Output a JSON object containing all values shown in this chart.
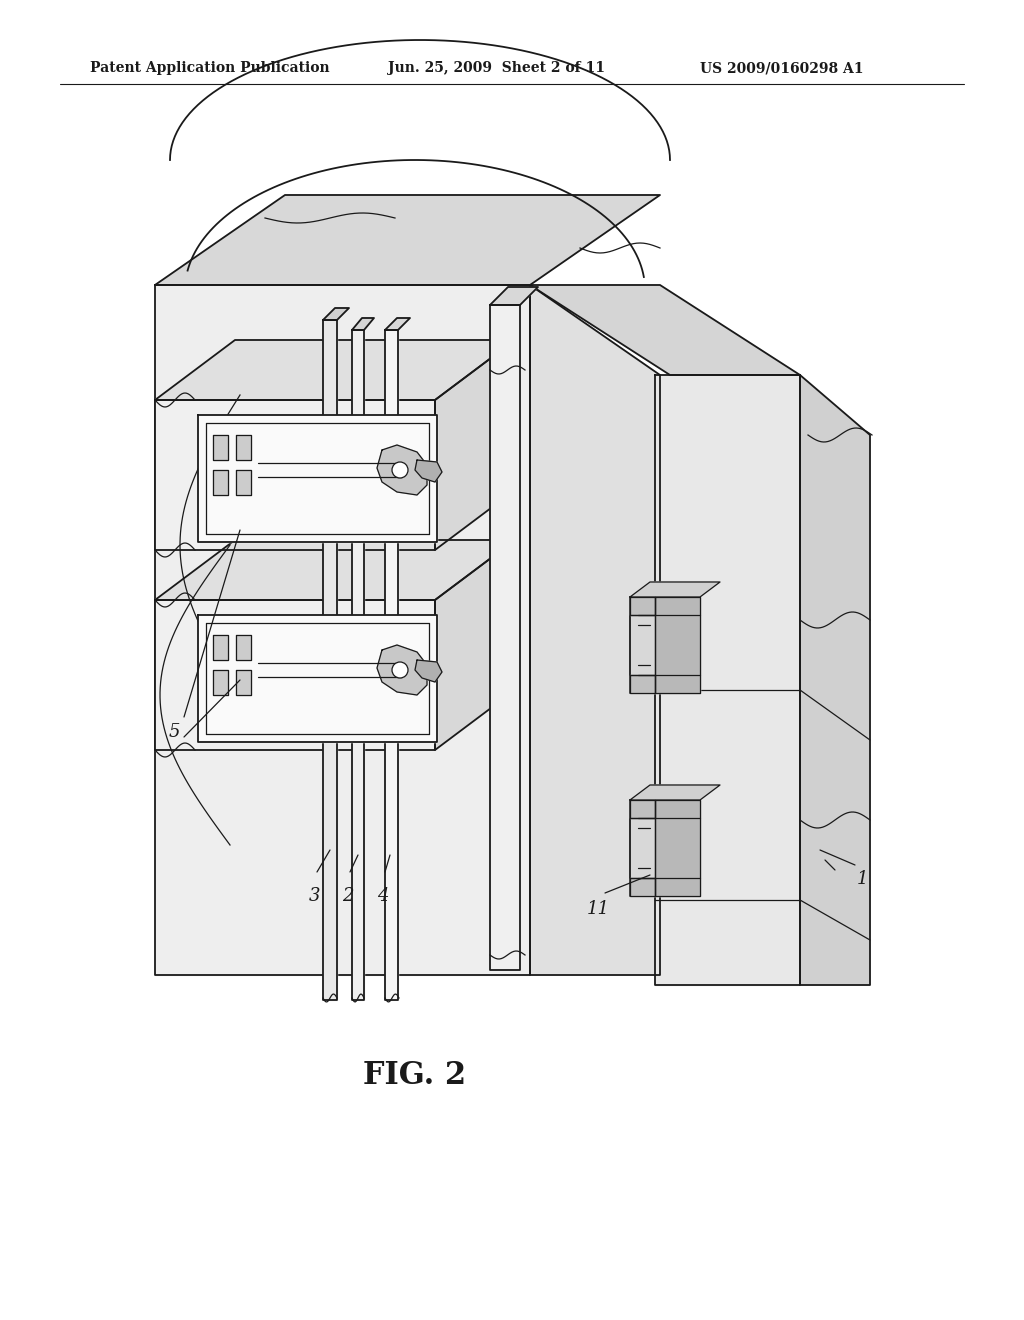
{
  "bg_color": "#ffffff",
  "line_color": "#1a1a1a",
  "header_left": "Patent Application Publication",
  "header_mid": "Jun. 25, 2009  Sheet 2 of 11",
  "header_right": "US 2009/0160298 A1",
  "fig_label": "FIG. 2",
  "gray_light": "#e8e8e8",
  "gray_mid": "#d0d0d0",
  "gray_dark": "#b8b8b8",
  "white": "#ffffff",
  "off_white": "#f5f5f5"
}
